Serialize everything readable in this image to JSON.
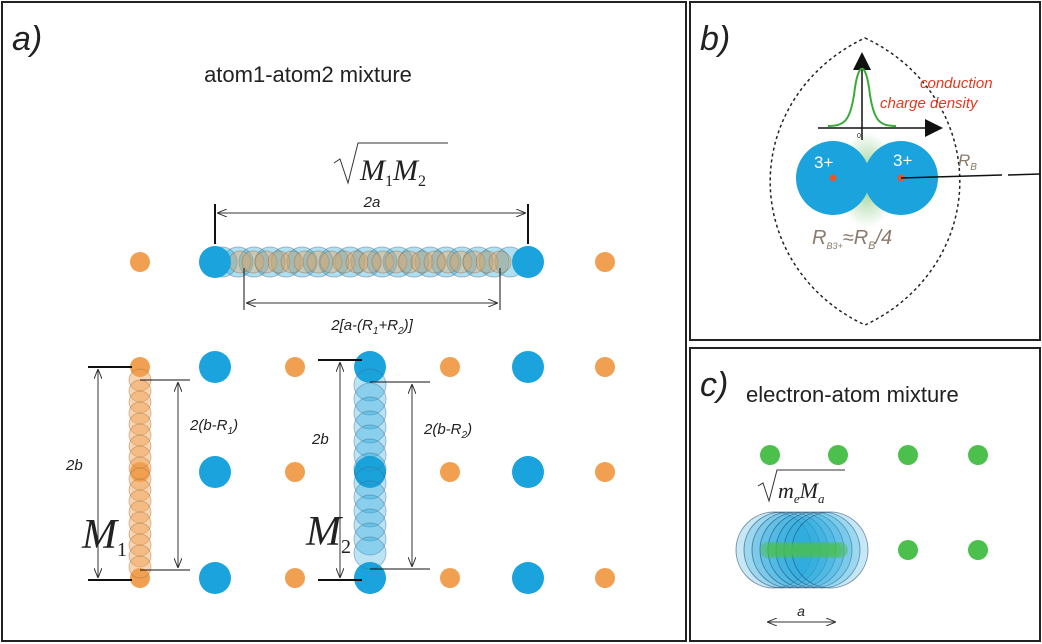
{
  "panel_a": {
    "label": "a)",
    "title": "atom1-atom2 mixture",
    "mass_formula": [
      "M",
      "1",
      "M",
      "2"
    ],
    "width_label": "2a",
    "gap_label": [
      "2[a-(R",
      "1",
      "+R",
      "2",
      ")]"
    ],
    "height_left": "2b",
    "gap_left": [
      "2(b-R",
      "1",
      ")"
    ],
    "mass_left": [
      "M",
      "1"
    ],
    "height_right": "2b",
    "gap_right": [
      "2(b-R",
      "2",
      ")"
    ],
    "mass_right": [
      "M",
      "2"
    ]
  },
  "panel_b": {
    "label": "b)",
    "density_label": [
      "conduction",
      "charge density"
    ],
    "origin": "0",
    "ion_charge": [
      "3+",
      "3+"
    ],
    "radius_label": [
      "R",
      "B"
    ],
    "ratio_label": [
      "R",
      "B3+",
      "≈R",
      "B",
      "/4"
    ]
  },
  "panel_c": {
    "label": "c)",
    "title": "electron-atom mixture",
    "mass_formula": [
      "m",
      "e",
      "M",
      "a"
    ],
    "spacing_label": "a"
  }
}
